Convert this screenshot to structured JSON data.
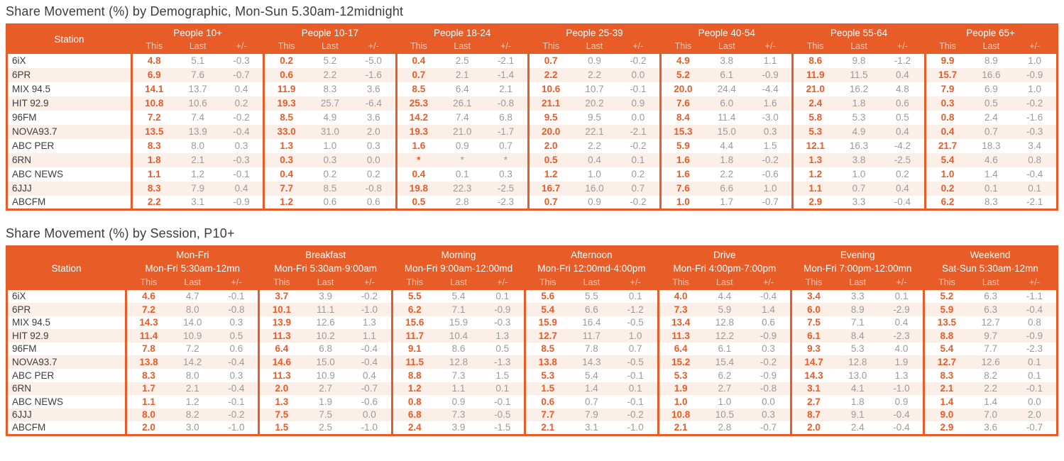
{
  "colors": {
    "accent": "#E85C28",
    "row_stripe": "#FCEFE8",
    "muted_text": "#9B9B9B",
    "dark_text": "#3D3D3D",
    "header_subtext": "#F8CBB8"
  },
  "tables": [
    {
      "title": "Share Movement (%) by Demographic, Mon-Sun 5.30am-12midnight",
      "station_header": "Station",
      "sub_headers": [
        "This",
        "Last",
        "+/-"
      ],
      "groups": [
        {
          "label": "People 10+"
        },
        {
          "label": "People 10-17"
        },
        {
          "label": "People 18-24"
        },
        {
          "label": "People 25-39"
        },
        {
          "label": "People 40-54"
        },
        {
          "label": "People 55-64"
        },
        {
          "label": "People 65+"
        }
      ],
      "rows": [
        {
          "station": "6iX",
          "values": [
            [
              "4.8",
              "5.1",
              "-0.3"
            ],
            [
              "0.2",
              "5.2",
              "-5.0"
            ],
            [
              "0.4",
              "2.5",
              "-2.1"
            ],
            [
              "0.7",
              "0.9",
              "-0.2"
            ],
            [
              "4.9",
              "3.8",
              "1.1"
            ],
            [
              "8.6",
              "9.8",
              "-1.2"
            ],
            [
              "9.9",
              "8.9",
              "1.0"
            ]
          ]
        },
        {
          "station": "6PR",
          "values": [
            [
              "6.9",
              "7.6",
              "-0.7"
            ],
            [
              "0.6",
              "2.2",
              "-1.6"
            ],
            [
              "0.7",
              "2.1",
              "-1.4"
            ],
            [
              "2.2",
              "2.2",
              "0.0"
            ],
            [
              "5.2",
              "6.1",
              "-0.9"
            ],
            [
              "11.9",
              "11.5",
              "0.4"
            ],
            [
              "15.7",
              "16.6",
              "-0.9"
            ]
          ]
        },
        {
          "station": "MIX 94.5",
          "values": [
            [
              "14.1",
              "13.7",
              "0.4"
            ],
            [
              "11.9",
              "8.3",
              "3.6"
            ],
            [
              "8.5",
              "6.4",
              "2.1"
            ],
            [
              "10.6",
              "10.7",
              "-0.1"
            ],
            [
              "20.0",
              "24.4",
              "-4.4"
            ],
            [
              "21.0",
              "16.2",
              "4.8"
            ],
            [
              "7.9",
              "6.9",
              "1.0"
            ]
          ]
        },
        {
          "station": "HIT 92.9",
          "values": [
            [
              "10.8",
              "10.6",
              "0.2"
            ],
            [
              "19.3",
              "25.7",
              "-6.4"
            ],
            [
              "25.3",
              "26.1",
              "-0.8"
            ],
            [
              "21.1",
              "20.2",
              "0.9"
            ],
            [
              "7.6",
              "6.0",
              "1.6"
            ],
            [
              "2.4",
              "1.8",
              "0.6"
            ],
            [
              "0.3",
              "0.5",
              "-0.2"
            ]
          ]
        },
        {
          "station": "96FM",
          "values": [
            [
              "7.2",
              "7.4",
              "-0.2"
            ],
            [
              "8.5",
              "4.9",
              "3.6"
            ],
            [
              "14.2",
              "7.4",
              "6.8"
            ],
            [
              "9.5",
              "9.5",
              "0.0"
            ],
            [
              "8.4",
              "11.4",
              "-3.0"
            ],
            [
              "5.8",
              "5.3",
              "0.5"
            ],
            [
              "0.8",
              "2.4",
              "-1.6"
            ]
          ]
        },
        {
          "station": "NOVA93.7",
          "values": [
            [
              "13.5",
              "13.9",
              "-0.4"
            ],
            [
              "33.0",
              "31.0",
              "2.0"
            ],
            [
              "19.3",
              "21.0",
              "-1.7"
            ],
            [
              "20.0",
              "22.1",
              "-2.1"
            ],
            [
              "15.3",
              "15.0",
              "0.3"
            ],
            [
              "5.3",
              "4.9",
              "0.4"
            ],
            [
              "0.4",
              "0.7",
              "-0.3"
            ]
          ]
        },
        {
          "station": "ABC PER",
          "values": [
            [
              "8.3",
              "8.0",
              "0.3"
            ],
            [
              "1.3",
              "1.0",
              "0.3"
            ],
            [
              "1.6",
              "0.9",
              "0.7"
            ],
            [
              "2.0",
              "2.2",
              "-0.2"
            ],
            [
              "5.9",
              "4.4",
              "1.5"
            ],
            [
              "12.1",
              "16.3",
              "-4.2"
            ],
            [
              "21.7",
              "18.3",
              "3.4"
            ]
          ]
        },
        {
          "station": "6RN",
          "values": [
            [
              "1.8",
              "2.1",
              "-0.3"
            ],
            [
              "0.3",
              "0.3",
              "0.0"
            ],
            [
              "*",
              "*",
              "*"
            ],
            [
              "0.5",
              "0.4",
              "0.1"
            ],
            [
              "1.6",
              "1.8",
              "-0.2"
            ],
            [
              "1.3",
              "3.8",
              "-2.5"
            ],
            [
              "5.4",
              "4.6",
              "0.8"
            ]
          ]
        },
        {
          "station": "ABC NEWS",
          "values": [
            [
              "1.1",
              "1.2",
              "-0.1"
            ],
            [
              "0.4",
              "0.2",
              "0.2"
            ],
            [
              "0.4",
              "0.1",
              "0.3"
            ],
            [
              "1.2",
              "1.0",
              "0.2"
            ],
            [
              "1.6",
              "2.2",
              "-0.6"
            ],
            [
              "1.2",
              "1.0",
              "0.2"
            ],
            [
              "1.0",
              "1.4",
              "-0.4"
            ]
          ]
        },
        {
          "station": "6JJJ",
          "values": [
            [
              "8.3",
              "7.9",
              "0.4"
            ],
            [
              "7.7",
              "8.5",
              "-0.8"
            ],
            [
              "19.8",
              "22.3",
              "-2.5"
            ],
            [
              "16.7",
              "16.0",
              "0.7"
            ],
            [
              "7.6",
              "6.6",
              "1.0"
            ],
            [
              "1.1",
              "0.7",
              "0.4"
            ],
            [
              "0.2",
              "0.1",
              "0.1"
            ]
          ]
        },
        {
          "station": "ABCFM",
          "values": [
            [
              "2.2",
              "3.1",
              "-0.9"
            ],
            [
              "1.2",
              "0.6",
              "0.6"
            ],
            [
              "0.5",
              "2.8",
              "-2.3"
            ],
            [
              "0.7",
              "0.9",
              "-0.2"
            ],
            [
              "1.0",
              "1.7",
              "-0.7"
            ],
            [
              "2.9",
              "3.3",
              "-0.4"
            ],
            [
              "6.2",
              "8.3",
              "-2.1"
            ]
          ]
        }
      ]
    },
    {
      "title": "Share Movement (%) by Session, P10+",
      "station_header": "Station",
      "sub_headers": [
        "This",
        "Last",
        "+/-"
      ],
      "groups": [
        {
          "label": "Mon-Fri",
          "sublabel": "Mon-Fri 5:30am-12mn"
        },
        {
          "label": "Breakfast",
          "sublabel": "Mon-Fri 5:30am-9:00am"
        },
        {
          "label": "Morning",
          "sublabel": "Mon-Fri 9:00am-12:00md"
        },
        {
          "label": "Afternoon",
          "sublabel": "Mon-Fri 12:00md-4:00pm"
        },
        {
          "label": "Drive",
          "sublabel": "Mon-Fri 4:00pm-7:00pm"
        },
        {
          "label": "Evening",
          "sublabel": "Mon-Fri 7:00pm-12:00mn"
        },
        {
          "label": "Weekend",
          "sublabel": "Sat-Sun 5:30am-12mn"
        }
      ],
      "rows": [
        {
          "station": "6iX",
          "values": [
            [
              "4.6",
              "4.7",
              "-0.1"
            ],
            [
              "3.7",
              "3.9",
              "-0.2"
            ],
            [
              "5.5",
              "5.4",
              "0.1"
            ],
            [
              "5.6",
              "5.5",
              "0.1"
            ],
            [
              "4.0",
              "4.4",
              "-0.4"
            ],
            [
              "3.4",
              "3.3",
              "0.1"
            ],
            [
              "5.2",
              "6.3",
              "-1.1"
            ]
          ]
        },
        {
          "station": "6PR",
          "values": [
            [
              "7.2",
              "8.0",
              "-0.8"
            ],
            [
              "10.1",
              "11.1",
              "-1.0"
            ],
            [
              "6.2",
              "7.1",
              "-0.9"
            ],
            [
              "5.4",
              "6.6",
              "-1.2"
            ],
            [
              "7.3",
              "5.9",
              "1.4"
            ],
            [
              "6.0",
              "8.9",
              "-2.9"
            ],
            [
              "5.9",
              "6.3",
              "-0.4"
            ]
          ]
        },
        {
          "station": "MIX 94.5",
          "values": [
            [
              "14.3",
              "14.0",
              "0.3"
            ],
            [
              "13.9",
              "12.6",
              "1.3"
            ],
            [
              "15.6",
              "15.9",
              "-0.3"
            ],
            [
              "15.9",
              "16.4",
              "-0.5"
            ],
            [
              "13.4",
              "12.8",
              "0.6"
            ],
            [
              "7.5",
              "7.1",
              "0.4"
            ],
            [
              "13.5",
              "12.7",
              "0.8"
            ]
          ]
        },
        {
          "station": "HIT 92.9",
          "values": [
            [
              "11.4",
              "10.9",
              "0.5"
            ],
            [
              "11.3",
              "10.2",
              "1.1"
            ],
            [
              "11.7",
              "10.4",
              "1.3"
            ],
            [
              "12.7",
              "11.7",
              "1.0"
            ],
            [
              "11.3",
              "12.2",
              "-0.9"
            ],
            [
              "6.1",
              "8.4",
              "-2.3"
            ],
            [
              "8.8",
              "9.7",
              "-0.9"
            ]
          ]
        },
        {
          "station": "96FM",
          "values": [
            [
              "7.8",
              "7.2",
              "0.6"
            ],
            [
              "6.4",
              "6.8",
              "-0.4"
            ],
            [
              "9.1",
              "8.6",
              "0.5"
            ],
            [
              "8.5",
              "7.8",
              "0.7"
            ],
            [
              "6.4",
              "6.1",
              "0.3"
            ],
            [
              "9.3",
              "5.3",
              "4.0"
            ],
            [
              "5.4",
              "7.7",
              "-2.3"
            ]
          ]
        },
        {
          "station": "NOVA93.7",
          "values": [
            [
              "13.8",
              "14.2",
              "-0.4"
            ],
            [
              "14.6",
              "15.0",
              "-0.4"
            ],
            [
              "11.5",
              "12.8",
              "-1.3"
            ],
            [
              "13.8",
              "14.3",
              "-0.5"
            ],
            [
              "15.2",
              "15.4",
              "-0.2"
            ],
            [
              "14.7",
              "12.8",
              "1.9"
            ],
            [
              "12.7",
              "12.6",
              "0.1"
            ]
          ]
        },
        {
          "station": "ABC PER",
          "values": [
            [
              "8.3",
              "8.0",
              "0.3"
            ],
            [
              "11.3",
              "10.9",
              "0.4"
            ],
            [
              "8.8",
              "7.3",
              "1.5"
            ],
            [
              "5.3",
              "5.4",
              "-0.1"
            ],
            [
              "5.3",
              "6.2",
              "-0.9"
            ],
            [
              "14.3",
              "13.0",
              "1.3"
            ],
            [
              "8.3",
              "8.2",
              "0.1"
            ]
          ]
        },
        {
          "station": "6RN",
          "values": [
            [
              "1.7",
              "2.1",
              "-0.4"
            ],
            [
              "2.0",
              "2.7",
              "-0.7"
            ],
            [
              "1.2",
              "1.1",
              "0.1"
            ],
            [
              "1.5",
              "1.4",
              "0.1"
            ],
            [
              "1.9",
              "2.7",
              "-0.8"
            ],
            [
              "3.1",
              "4.1",
              "-1.0"
            ],
            [
              "2.1",
              "2.2",
              "-0.1"
            ]
          ]
        },
        {
          "station": "ABC NEWS",
          "values": [
            [
              "1.1",
              "1.2",
              "-0.1"
            ],
            [
              "1.3",
              "1.9",
              "-0.6"
            ],
            [
              "0.8",
              "0.9",
              "-0.1"
            ],
            [
              "0.6",
              "0.7",
              "-0.1"
            ],
            [
              "1.0",
              "1.0",
              "0.0"
            ],
            [
              "2.7",
              "1.8",
              "0.9"
            ],
            [
              "1.4",
              "1.4",
              "0.0"
            ]
          ]
        },
        {
          "station": "6JJJ",
          "values": [
            [
              "8.0",
              "8.2",
              "-0.2"
            ],
            [
              "7.5",
              "7.5",
              "0.0"
            ],
            [
              "6.8",
              "7.3",
              "-0.5"
            ],
            [
              "7.7",
              "7.9",
              "-0.2"
            ],
            [
              "10.8",
              "10.5",
              "0.3"
            ],
            [
              "8.7",
              "9.1",
              "-0.4"
            ],
            [
              "9.0",
              "7.0",
              "2.0"
            ]
          ]
        },
        {
          "station": "ABCFM",
          "values": [
            [
              "2.0",
              "3.0",
              "-1.0"
            ],
            [
              "1.5",
              "2.5",
              "-1.0"
            ],
            [
              "2.4",
              "3.9",
              "-1.5"
            ],
            [
              "2.1",
              "3.1",
              "-1.0"
            ],
            [
              "2.1",
              "2.8",
              "-0.7"
            ],
            [
              "2.0",
              "2.4",
              "-0.4"
            ],
            [
              "2.9",
              "3.6",
              "-0.7"
            ]
          ]
        }
      ]
    }
  ]
}
